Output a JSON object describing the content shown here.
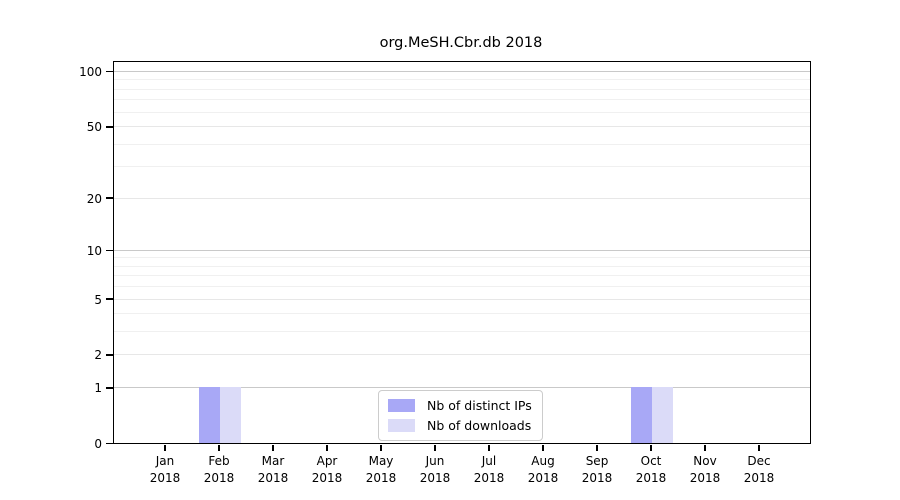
{
  "chart_data": {
    "type": "bar",
    "title": "org.MeSH.Cbr.db 2018",
    "categories": [
      "Jan",
      "Feb",
      "Mar",
      "Apr",
      "May",
      "Jun",
      "Jul",
      "Aug",
      "Sep",
      "Oct",
      "Nov",
      "Dec"
    ],
    "year": "2018",
    "series": [
      {
        "name": "Nb of distinct IPs",
        "color": "#a8a8f6",
        "values": [
          0,
          1,
          0,
          0,
          0,
          0,
          0,
          0,
          0,
          1,
          0,
          0
        ]
      },
      {
        "name": "Nb of downloads",
        "color": "#dbdbf8",
        "values": [
          0,
          1,
          0,
          0,
          0,
          0,
          0,
          0,
          0,
          1,
          0,
          0
        ]
      }
    ],
    "y_axis": {
      "scale": "log1p",
      "max": 112,
      "ticks": [
        100,
        50,
        20,
        10,
        5,
        2,
        1,
        0
      ],
      "major_gridlines": [
        100,
        10,
        1
      ],
      "mid_gridlines": [
        50,
        20,
        5,
        2
      ],
      "minor_gridlines": [
        90,
        80,
        70,
        60,
        40,
        30,
        9,
        8,
        7,
        6,
        4,
        3
      ]
    },
    "grid": true,
    "legend_position": "lower center",
    "colors": {
      "major_grid": "#c9c9c9",
      "mid_grid": "#e7e7e7",
      "minor_grid": "#f0f0f0"
    }
  },
  "legend": {
    "items": [
      {
        "label": "Nb of distinct IPs"
      },
      {
        "label": "Nb of downloads"
      }
    ]
  }
}
